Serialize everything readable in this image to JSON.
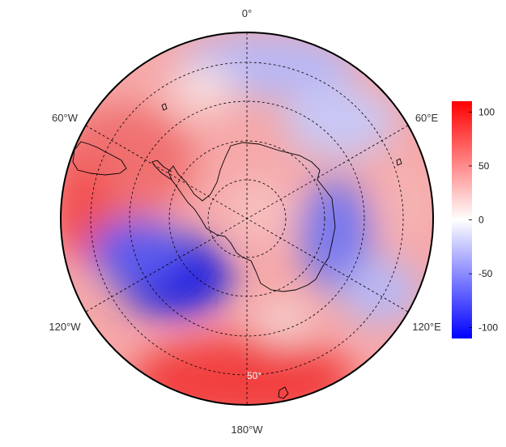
{
  "map": {
    "projection": "south polar stereographic",
    "meridian_labels": {
      "top": "0°",
      "upper_left": "60°W",
      "upper_right": "60°E",
      "lower_left": "120°W",
      "lower_right": "120°E",
      "bottom": "180°W"
    },
    "latitude_label": "50°",
    "colors": {
      "positive": "#ff0000",
      "negative": "#0000ff",
      "zero": "#ffffff",
      "outline": "#000000",
      "grid": "#000000"
    }
  },
  "colorbar": {
    "min": -110,
    "max": 110,
    "ticks": [
      "100",
      "50",
      "0",
      "-50",
      "-100"
    ]
  }
}
